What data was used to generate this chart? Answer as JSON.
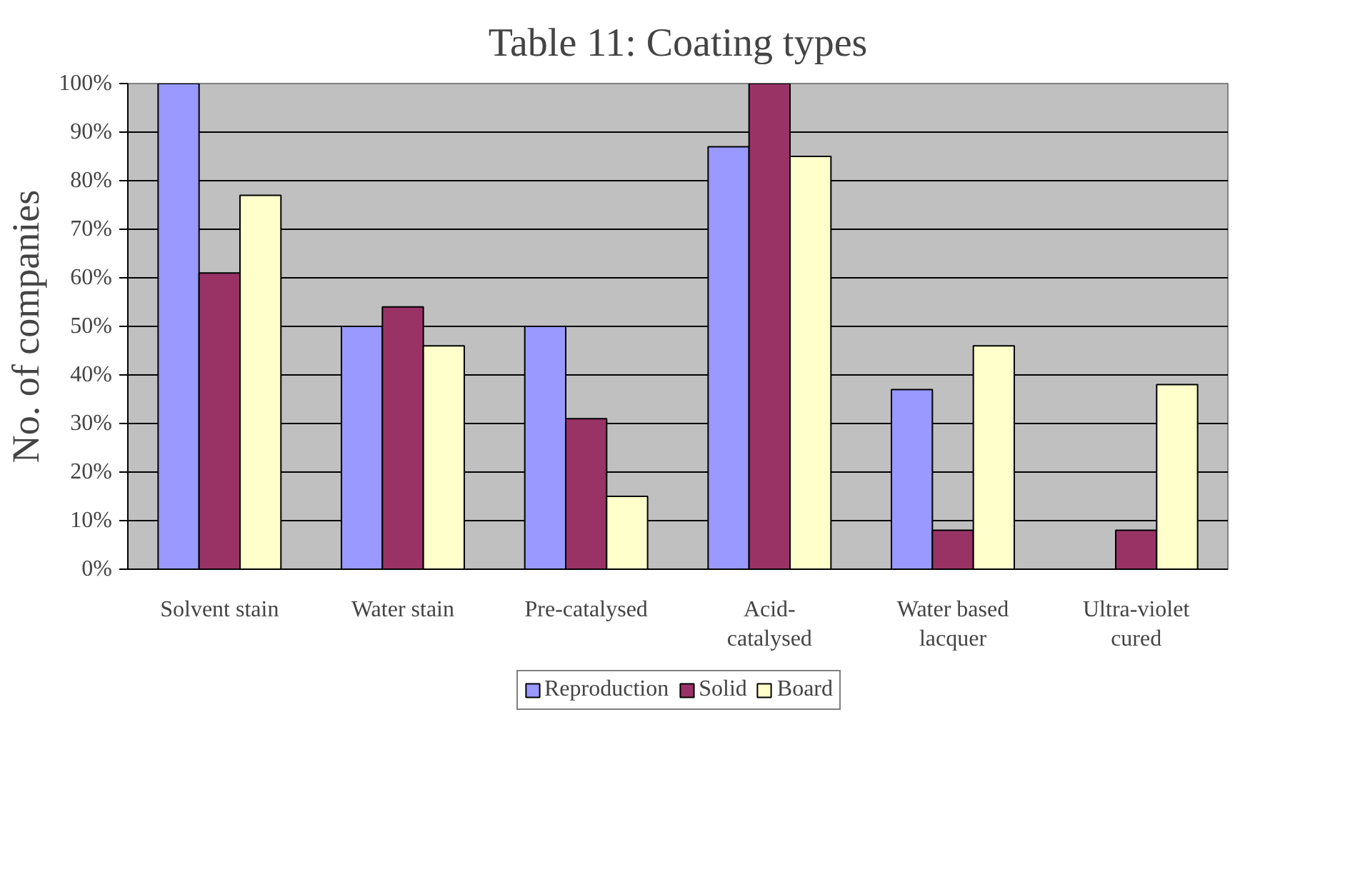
{
  "chart_data": {
    "type": "bar",
    "title": "Table 11: Coating types",
    "ylabel": "No. of companies",
    "categories": [
      "Solvent stain",
      "Water stain",
      "Pre-catalysed",
      "Acid-catalysed",
      "Water based lacquer",
      "Ultra-violet cured"
    ],
    "series": [
      {
        "name": "Reproduction",
        "color": "#9999ff",
        "values": [
          100,
          50,
          50,
          87,
          37,
          0
        ]
      },
      {
        "name": "Solid",
        "color": "#993366",
        "values": [
          61,
          54,
          31,
          100,
          8,
          8
        ]
      },
      {
        "name": "Board",
        "color": "#ffffcc",
        "values": [
          77,
          46,
          15,
          85,
          46,
          38
        ]
      }
    ],
    "ylim": [
      0,
      100
    ],
    "yticks": [
      {
        "value": 0,
        "label": "0%"
      },
      {
        "value": 10,
        "label": "10%"
      },
      {
        "value": 20,
        "label": "20%"
      },
      {
        "value": 30,
        "label": "30%"
      },
      {
        "value": 40,
        "label": "40%"
      },
      {
        "value": 50,
        "label": "50%"
      },
      {
        "value": 60,
        "label": "60%"
      },
      {
        "value": 70,
        "label": "70%"
      },
      {
        "value": 80,
        "label": "80%"
      },
      {
        "value": 90,
        "label": "90%"
      },
      {
        "value": 100,
        "label": "100%"
      }
    ],
    "grid": "y",
    "legend": "bottom"
  }
}
